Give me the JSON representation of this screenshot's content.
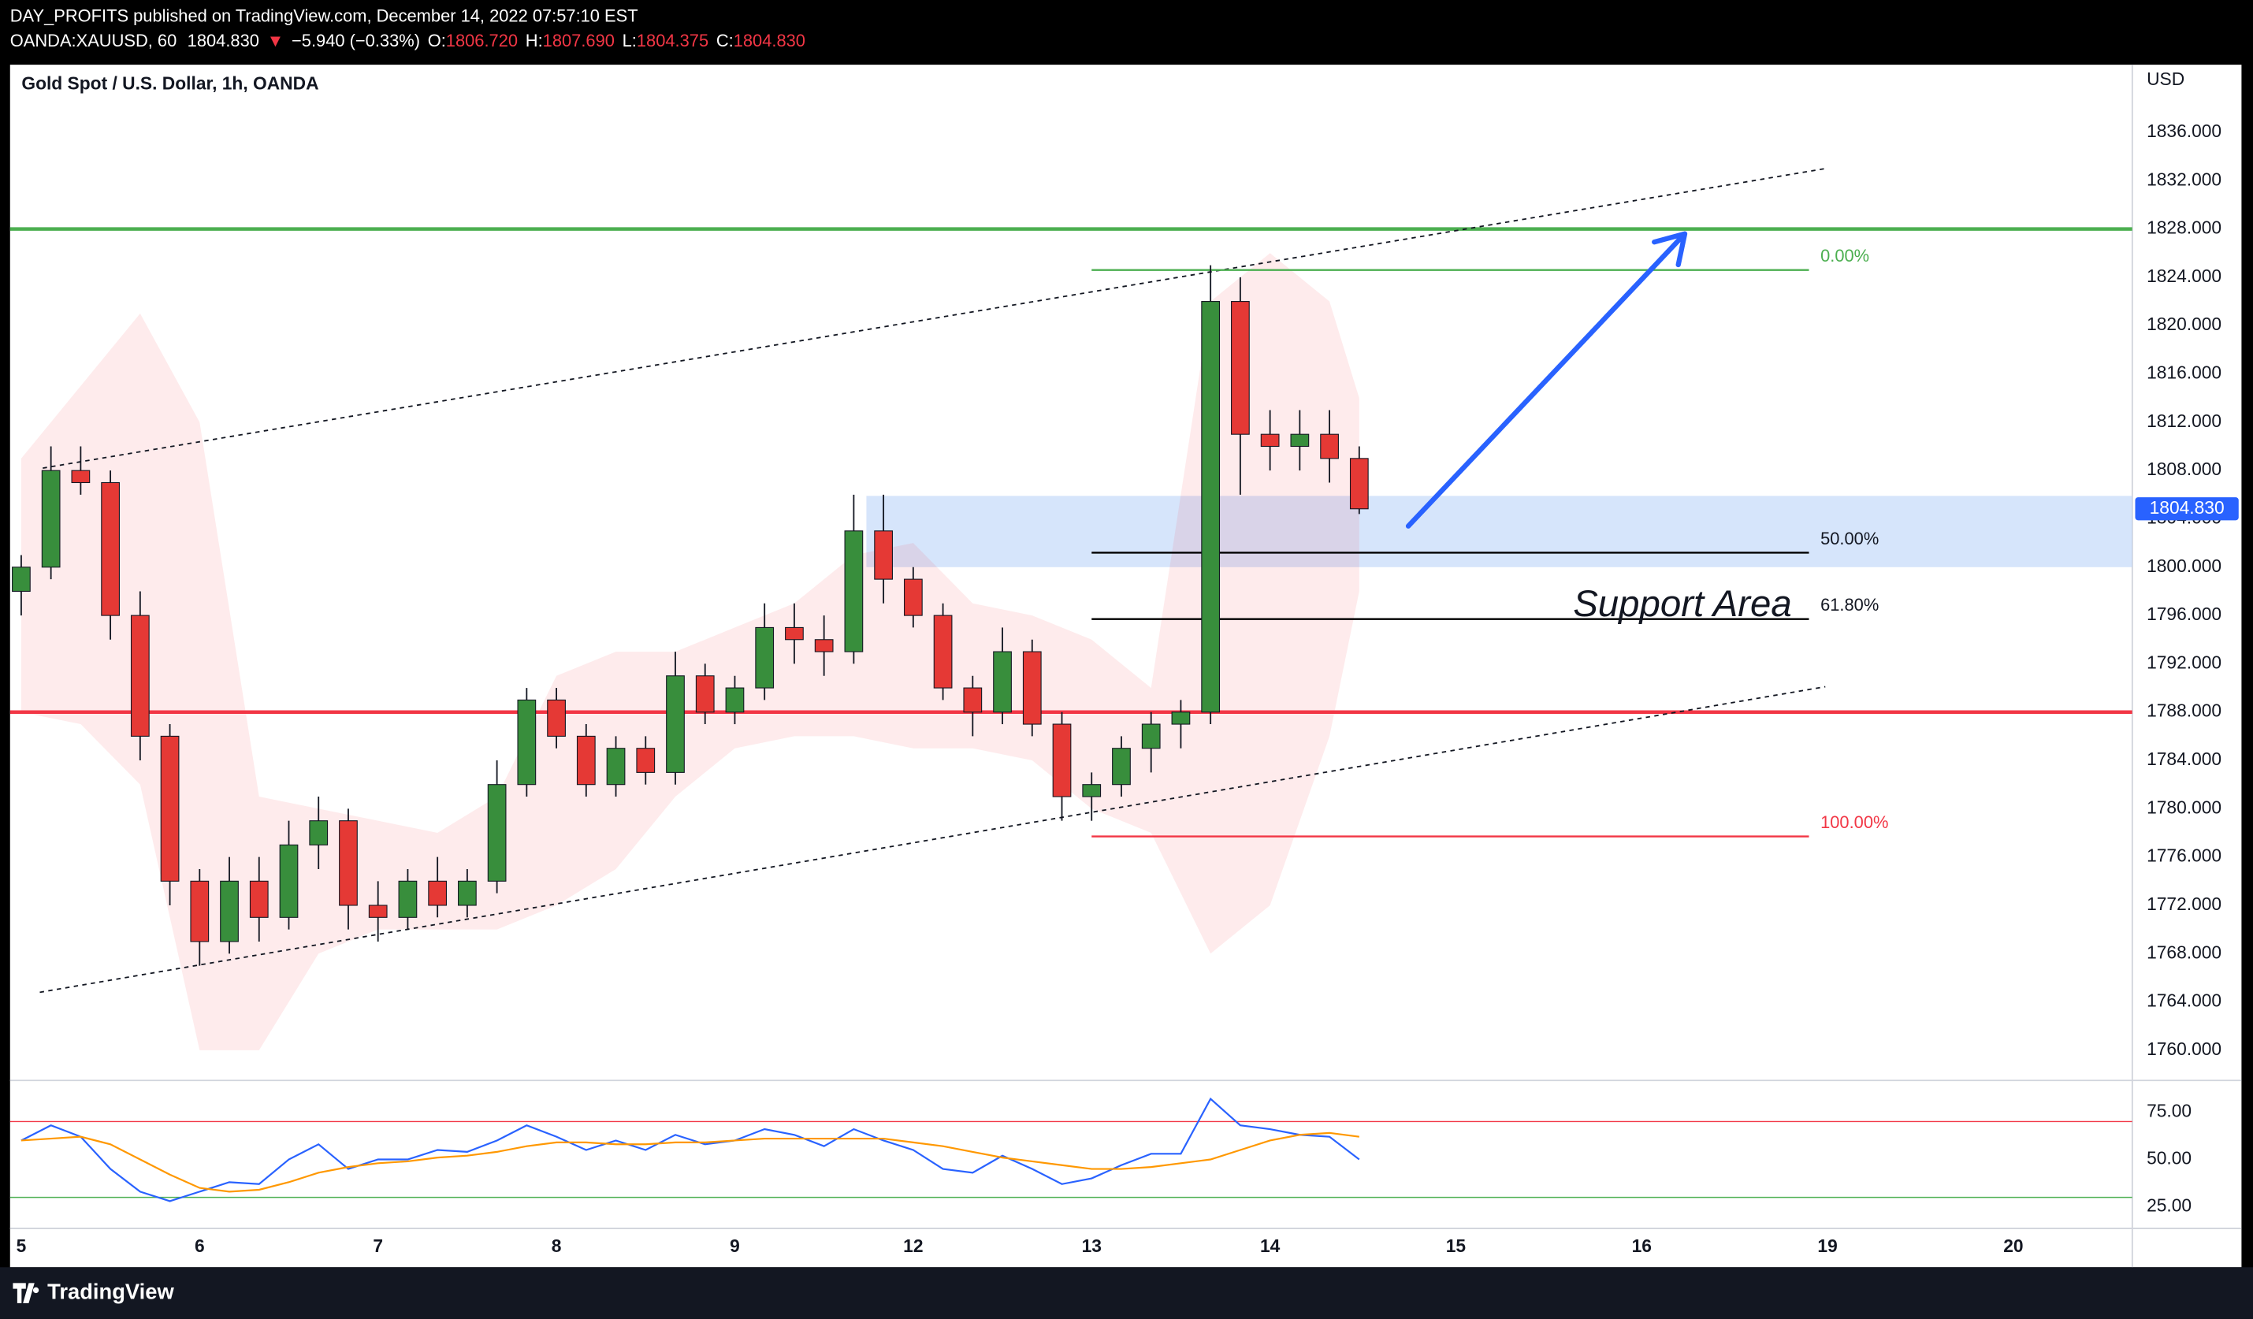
{
  "header": {
    "byline": "DAY_PROFITS published on TradingView.com, December 14, 2022 07:57:10 EST",
    "symbol": "OANDA:XAUUSD, 60",
    "last": "1804.830",
    "arrow": "▼",
    "change": "−5.940 (−0.33%)",
    "ohlc": [
      {
        "key": "O:",
        "price": "1806.720"
      },
      {
        "key": "H:",
        "price": "1807.690"
      },
      {
        "key": "L:",
        "price": "1804.375"
      },
      {
        "key": "C:",
        "price": "1804.830"
      }
    ]
  },
  "footer": {
    "brand": "TradingView"
  },
  "chart_data": [
    {
      "type": "candlestick",
      "title": "Gold Spot / U.S. Dollar, 1h, OANDA",
      "currency": "USD",
      "up_color": "#388e3c",
      "down_color": "#e53935",
      "x": [
        0,
        4,
        8,
        12,
        16,
        20,
        24,
        28,
        32,
        36,
        40,
        44,
        48,
        52,
        56,
        60,
        64,
        68,
        72,
        76,
        80,
        84,
        88,
        92,
        96,
        100,
        104,
        108,
        112,
        116,
        120,
        124,
        128,
        132,
        136,
        140,
        144,
        148,
        152,
        156,
        160,
        164,
        168,
        172,
        176,
        180
      ],
      "open": [
        1798,
        1800,
        1808,
        1807,
        1796,
        1786,
        1774,
        1769,
        1774,
        1771,
        1777,
        1779,
        1772,
        1771,
        1774,
        1772,
        1774,
        1782,
        1789,
        1786,
        1782,
        1785,
        1783,
        1791,
        1788,
        1790,
        1795,
        1794,
        1793,
        1803,
        1799,
        1796,
        1790,
        1788,
        1793,
        1787,
        1781,
        1782,
        1785,
        1787,
        1788,
        1822,
        1811,
        1810,
        1811,
        1809
      ],
      "high": [
        1801,
        1810,
        1810,
        1808,
        1798,
        1787,
        1775,
        1776,
        1776,
        1779,
        1781,
        1780,
        1774,
        1775,
        1776,
        1775,
        1784,
        1790,
        1790,
        1787,
        1786,
        1786,
        1793,
        1792,
        1791,
        1797,
        1797,
        1796,
        1806,
        1806,
        1800,
        1797,
        1791,
        1795,
        1794,
        1788,
        1783,
        1786,
        1788,
        1789,
        1825,
        1824,
        1813,
        1813,
        1813,
        1810
      ],
      "low": [
        1796,
        1799,
        1806,
        1794,
        1784,
        1772,
        1767,
        1768,
        1769,
        1770,
        1775,
        1770,
        1769,
        1770,
        1771,
        1771,
        1773,
        1781,
        1785,
        1781,
        1781,
        1782,
        1782,
        1787,
        1787,
        1789,
        1792,
        1791,
        1792,
        1797,
        1795,
        1789,
        1786,
        1787,
        1786,
        1779,
        1779,
        1781,
        1783,
        1785,
        1787,
        1806,
        1808,
        1808,
        1807,
        1804.4
      ],
      "close": [
        1800,
        1808,
        1807,
        1796,
        1786,
        1774,
        1769,
        1774,
        1771,
        1777,
        1779,
        1772,
        1771,
        1774,
        1772,
        1774,
        1782,
        1789,
        1786,
        1782,
        1785,
        1783,
        1791,
        1788,
        1790,
        1795,
        1794,
        1793,
        1803,
        1799,
        1796,
        1790,
        1788,
        1793,
        1787,
        1781,
        1782,
        1785,
        1787,
        1788,
        1822,
        1811,
        1810,
        1811,
        1809,
        1804.83
      ],
      "xlim": [
        -1.5,
        284
      ],
      "xticks": [
        {
          "value": 0,
          "label": "5"
        },
        {
          "value": 24,
          "label": "6"
        },
        {
          "value": 48,
          "label": "7"
        },
        {
          "value": 72,
          "label": "8"
        },
        {
          "value": 96,
          "label": "9"
        },
        {
          "value": 120,
          "label": "12"
        },
        {
          "value": 144,
          "label": "13"
        },
        {
          "value": 168,
          "label": "14"
        },
        {
          "value": 193,
          "label": "15"
        },
        {
          "value": 218,
          "label": "16"
        },
        {
          "value": 243,
          "label": "19"
        },
        {
          "value": 268,
          "label": "20"
        }
      ],
      "ylim": [
        1757.5,
        1841.6
      ],
      "yticks": [
        {
          "value": 1760,
          "label": "1760.000"
        },
        {
          "value": 1764,
          "label": "1764.000"
        },
        {
          "value": 1768,
          "label": "1768.000"
        },
        {
          "value": 1772,
          "label": "1772.000"
        },
        {
          "value": 1776,
          "label": "1776.000"
        },
        {
          "value": 1780,
          "label": "1780.000"
        },
        {
          "value": 1784,
          "label": "1784.000"
        },
        {
          "value": 1788,
          "label": "1788.000"
        },
        {
          "value": 1792,
          "label": "1792.000"
        },
        {
          "value": 1796,
          "label": "1796.000"
        },
        {
          "value": 1800,
          "label": "1800.000"
        },
        {
          "value": 1804,
          "label": "1804.000"
        },
        {
          "value": 1808,
          "label": "1808.000"
        },
        {
          "value": 1812,
          "label": "1812.000"
        },
        {
          "value": 1816,
          "label": "1816.000"
        },
        {
          "value": 1820,
          "label": "1820.000"
        },
        {
          "value": 1824,
          "label": "1824.000"
        },
        {
          "value": 1828,
          "label": "1828.000"
        },
        {
          "value": 1832,
          "label": "1832.000"
        },
        {
          "value": 1836,
          "label": "1836.000"
        }
      ],
      "grid": false,
      "last_price": {
        "value": 1804.83,
        "label": "1804.830",
        "color": "#2962ff"
      },
      "bollinger": {
        "color": "#f23645",
        "x": [
          0,
          8,
          16,
          24,
          32,
          40,
          48,
          56,
          64,
          72,
          80,
          88,
          96,
          104,
          112,
          120,
          128,
          136,
          144,
          152,
          160,
          168,
          176,
          180
        ],
        "upper": [
          1809,
          1815,
          1821,
          1812,
          1781,
          1780,
          1779,
          1778,
          1781,
          1791,
          1793,
          1793,
          1795,
          1797,
          1801,
          1802,
          1797,
          1796,
          1794,
          1790,
          1822,
          1826,
          1822,
          1814
        ],
        "lower": [
          1788,
          1787,
          1782,
          1760,
          1760,
          1768,
          1770,
          1770,
          1770,
          1772,
          1775,
          1781,
          1785,
          1786,
          1786,
          1785,
          1785,
          1784,
          1780,
          1778,
          1768,
          1772,
          1786,
          1798
        ]
      },
      "support_zone": {
        "x0": 113.7,
        "y": [
          1800,
          1805.9
        ],
        "color": "#bbd3f8",
        "label": "Support Area"
      },
      "hlines": [
        {
          "value": 1828,
          "color": "#4caf50"
        },
        {
          "value": 1788,
          "color": "#f23645"
        }
      ],
      "channel": [
        {
          "x": [
            2.9,
            242.7
          ],
          "y": [
            1808.2,
            1833
          ]
        },
        {
          "x": [
            2.5,
            242.7
          ],
          "y": [
            1764.8,
            1790.1
          ]
        }
      ],
      "fib": {
        "x": [
          144,
          240.5
        ],
        "levels": [
          {
            "price": 1824.6,
            "label": "0.00%",
            "color": "#4caf50"
          },
          {
            "price": 1801.2,
            "label": "50.00%",
            "color": "#000000"
          },
          {
            "price": 1795.7,
            "label": "61.80%",
            "color": "#000000"
          },
          {
            "price": 1777.7,
            "label": "100.00%",
            "color": "#f23645"
          }
        ]
      },
      "arrow": {
        "x": [
          186.6,
          223.8
        ],
        "y": [
          1803.4,
          1827.6
        ],
        "color": "#2962ff"
      }
    },
    {
      "type": "line",
      "x": [
        0,
        4,
        8,
        12,
        16,
        20,
        24,
        28,
        32,
        36,
        40,
        44,
        48,
        52,
        56,
        60,
        64,
        68,
        72,
        76,
        80,
        84,
        88,
        92,
        96,
        100,
        104,
        108,
        112,
        116,
        120,
        124,
        128,
        132,
        136,
        140,
        144,
        148,
        152,
        156,
        160,
        164,
        168,
        172,
        176,
        180
      ],
      "series": [
        {
          "color": "#2962ff",
          "values": [
            60,
            68,
            62,
            45,
            33,
            28,
            33,
            38,
            37,
            50,
            58,
            45,
            50,
            50,
            55,
            54,
            60,
            68,
            62,
            55,
            60,
            55,
            63,
            58,
            60,
            66,
            63,
            57,
            66,
            60,
            55,
            45,
            43,
            52,
            45,
            37,
            40,
            47,
            53,
            53,
            82,
            68,
            66,
            63,
            62,
            50
          ]
        },
        {
          "color": "#ff9800",
          "values": [
            60,
            61,
            62,
            58,
            50,
            42,
            35,
            33,
            34,
            38,
            43,
            46,
            48,
            49,
            51,
            52,
            54,
            57,
            59,
            59,
            58,
            58,
            59,
            59,
            60,
            61,
            61,
            61,
            61,
            61,
            59,
            57,
            54,
            51,
            49,
            47,
            45,
            45,
            46,
            48,
            50,
            55,
            60,
            63,
            64,
            62
          ]
        }
      ],
      "xlim": [
        -1.5,
        284
      ],
      "ylim": [
        13.6,
        91.7
      ],
      "yticks": [
        {
          "value": 25,
          "label": "25.00"
        },
        {
          "value": 50,
          "label": "50.00"
        },
        {
          "value": 75,
          "label": "75.00"
        }
      ],
      "bands": [
        {
          "value": 70,
          "color": "#f23645"
        },
        {
          "value": 30,
          "color": "#4caf50"
        }
      ]
    }
  ]
}
